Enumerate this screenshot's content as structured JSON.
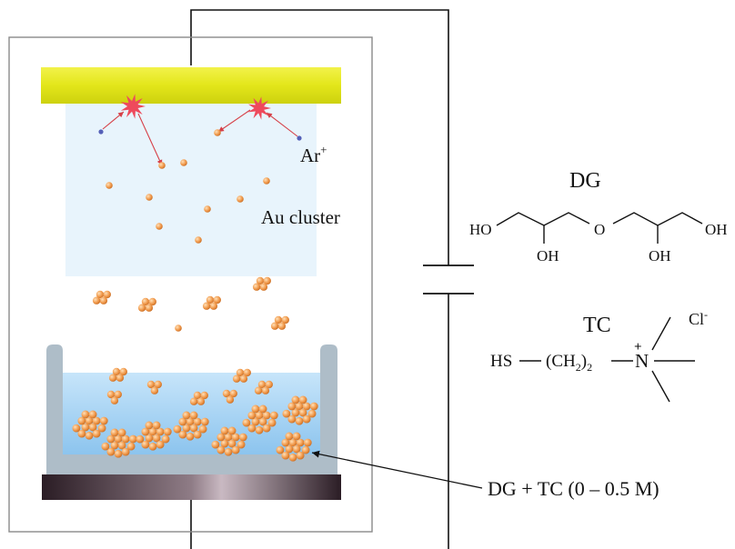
{
  "labels": {
    "ar": "Ar",
    "ar_sup": "+",
    "au_cluster": "Au cluster",
    "dg_title": "DG",
    "tc_title": "TC",
    "cl": "Cl",
    "cl_sup": "-",
    "solution": "DG + TC (0 – 0.5 M)"
  },
  "dg_structure": {
    "ho_left": "HO",
    "o_center": "O",
    "oh_right": "OH",
    "oh_low_left": "OH",
    "oh_low_right": "OH"
  },
  "tc_structure": {
    "hs": "HS",
    "chain_open": "(CH",
    "chain_sub": "2",
    "chain_close": ")",
    "chain_mult": "2",
    "n": "N",
    "n_charge": "+"
  },
  "colors": {
    "target": "#e6ea1c",
    "cathode": "#3a2c33",
    "vessel": "#aebdc8",
    "liquid": "#a6d4f4",
    "plasma": "#e4f2fb",
    "particle": "#f0a052",
    "spark": "#ee4a5c",
    "arrow": "#d64048",
    "ion": "#5560b8"
  }
}
